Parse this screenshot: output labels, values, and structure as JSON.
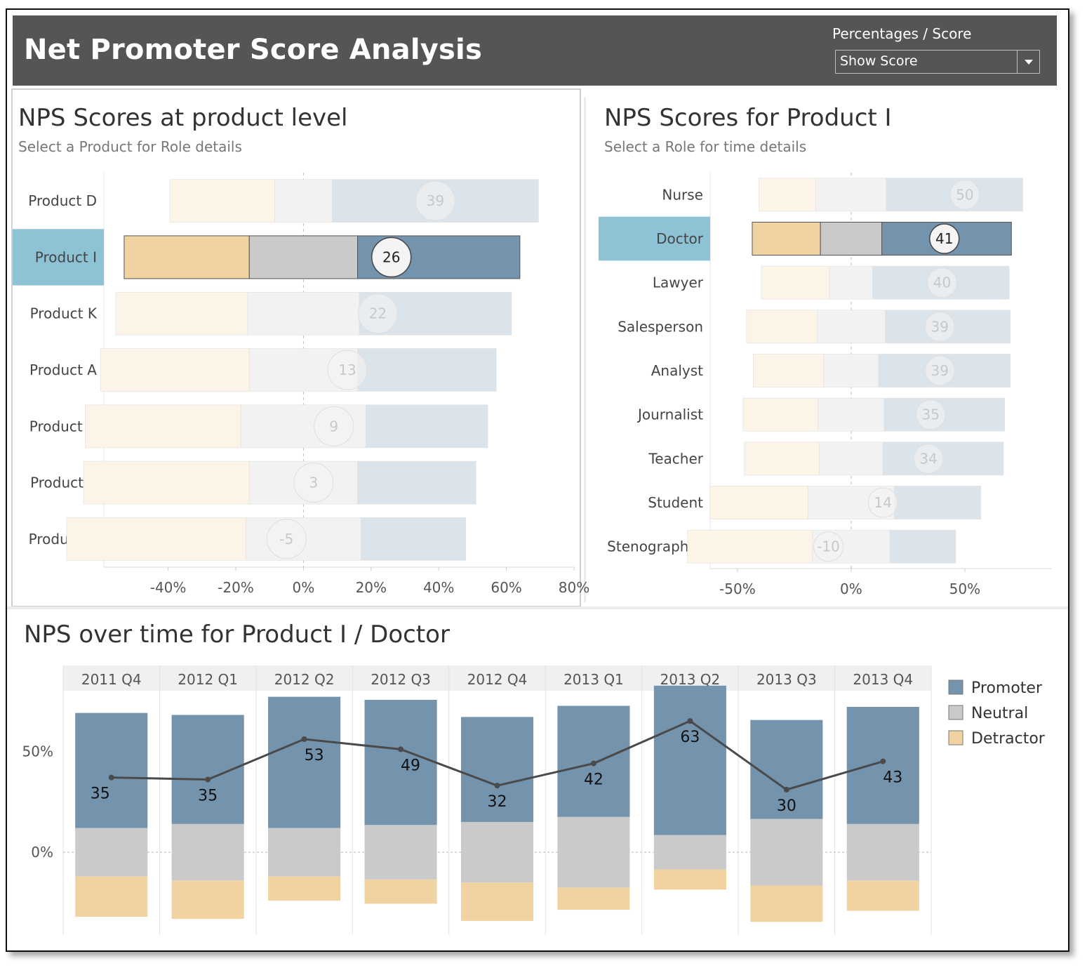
{
  "header": {
    "title": "Net Promoter Score Analysis",
    "parameter_label": "Percentages / Score",
    "parameter_value": "Show Score"
  },
  "colors": {
    "promoter": "#7493ad",
    "neutral": "#cacaca",
    "detractor": "#f0d3a0",
    "highlight": "#8dc3d4",
    "header_bg": "#555555"
  },
  "product_panel": {
    "title": "NPS Scores at product level",
    "subtitle": "Select a Product for Role details"
  },
  "role_panel": {
    "title": "NPS Scores for Product I",
    "subtitle": "Select a Role for time details"
  },
  "time_panel": {
    "title": "NPS over time for Product I / Doctor"
  },
  "chart_data": [
    {
      "type": "bar",
      "orientation": "horizontal-diverging",
      "categories": [
        "Product D",
        "Product I",
        "Product K",
        "Product A",
        "Product C",
        "Product E",
        "Product H"
      ],
      "series": [
        {
          "name": "Detractor",
          "values": [
            31,
            37,
            39,
            44,
            46,
            49,
            53
          ]
        },
        {
          "name": "Neutral",
          "values": [
            17,
            32,
            33,
            32,
            37,
            32,
            34
          ]
        },
        {
          "name": "Promoter",
          "values": [
            61,
            48,
            45,
            41,
            36,
            35,
            31
          ]
        }
      ],
      "scores": [
        39,
        26,
        22,
        13,
        9,
        3,
        -5
      ],
      "selected": "Product I",
      "xlim": [
        -59,
        80
      ],
      "xticks": [
        -40,
        -20,
        0,
        20,
        40,
        60,
        80
      ],
      "xtick_labels": [
        "-40%",
        "-20%",
        "0%",
        "20%",
        "40%",
        "60%",
        "80%"
      ]
    },
    {
      "type": "bar",
      "orientation": "horizontal-diverging",
      "categories": [
        "Nurse",
        "Doctor",
        "Lawyer",
        "Salesperson",
        "Analyst",
        "Journalist",
        "Teacher",
        "Student",
        "Stenographer"
      ],
      "series": [
        {
          "name": "Detractor",
          "values": [
            25,
            30,
            30,
            31,
            31,
            33,
            33,
            43,
            55
          ]
        },
        {
          "name": "Neutral",
          "values": [
            31,
            27,
            19,
            30,
            24,
            29,
            28,
            38,
            34
          ]
        },
        {
          "name": "Promoter",
          "values": [
            60,
            57,
            60,
            55,
            58,
            53,
            53,
            38,
            29
          ]
        }
      ],
      "scores": [
        50,
        41,
        40,
        39,
        39,
        35,
        34,
        14,
        -10
      ],
      "selected": "Doctor",
      "xlim": [
        -62,
        88
      ],
      "xticks": [
        -50,
        0,
        50
      ],
      "xtick_labels": [
        "-50%",
        "0%",
        "50%"
      ]
    },
    {
      "type": "bar",
      "orientation": "vertical-diverging-with-line",
      "categories": [
        "2011 Q4",
        "2012 Q1",
        "2012 Q2",
        "2012 Q3",
        "2012 Q4",
        "2013 Q1",
        "2013 Q2",
        "2013 Q3",
        "2013 Q4"
      ],
      "series": [
        {
          "name": "Promoter",
          "values": [
            57,
            54,
            65,
            62,
            52,
            55,
            74,
            49,
            58
          ]
        },
        {
          "name": "Neutral",
          "values": [
            24,
            28,
            24,
            27,
            30,
            35,
            17,
            33,
            28
          ]
        },
        {
          "name": "Detractor",
          "values": [
            20,
            19,
            12,
            12,
            19,
            11,
            10,
            18,
            15
          ]
        }
      ],
      "line": {
        "values": [
          37,
          36,
          56,
          51,
          33,
          44,
          65,
          31,
          45
        ]
      },
      "scores": [
        35,
        35,
        53,
        49,
        32,
        42,
        63,
        30,
        43
      ],
      "ylim": [
        -41,
        80
      ],
      "yticks": [
        0,
        50
      ],
      "ytick_labels": [
        "0%",
        "50%"
      ],
      "legend": {
        "position": "right",
        "entries": [
          "Promoter",
          "Neutral",
          "Detractor"
        ]
      }
    }
  ]
}
